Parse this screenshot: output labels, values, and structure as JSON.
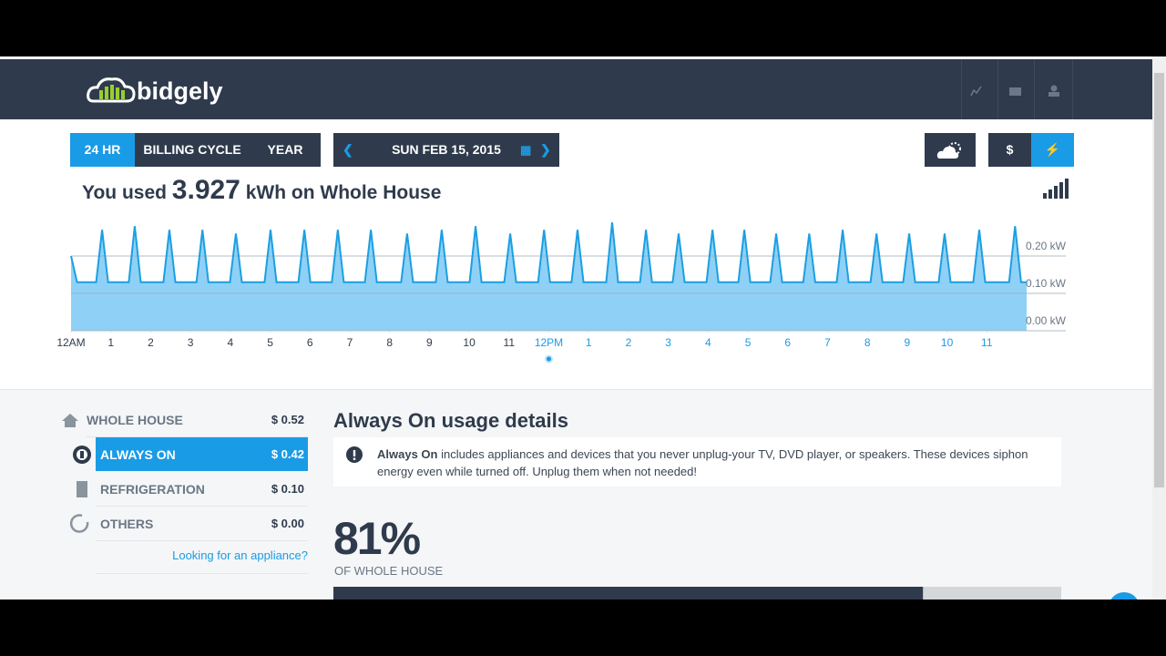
{
  "header": {
    "logo": "bidgely"
  },
  "controls": {
    "tabs": [
      "24 HR",
      "BILLING CYCLE",
      "YEAR"
    ],
    "date": "SUN FEB 15, 2015",
    "currency_button": "$"
  },
  "summary": {
    "prefix": "You used",
    "amount": "3.927",
    "suffix": "kWh on Whole House"
  },
  "chart_data": {
    "type": "area",
    "color": "#1b9fe2",
    "fill": "#8fd1f6",
    "x": [
      0,
      0.15,
      0.63,
      0.78,
      0.93,
      1.45,
      1.6,
      1.75,
      2.32,
      2.47,
      2.62,
      3.15,
      3.3,
      3.45,
      3.99,
      4.14,
      4.29,
      4.86,
      5.01,
      5.16,
      5.71,
      5.86,
      6.01,
      6.55,
      6.7,
      6.85,
      7.38,
      7.53,
      7.68,
      8.29,
      8.44,
      8.59,
      9.16,
      9.31,
      9.46,
      10.01,
      10.16,
      10.31,
      10.88,
      11.03,
      11.18,
      11.73,
      11.88,
      12.03,
      12.57,
      12.72,
      12.87,
      13.44,
      13.59,
      13.74,
      14.29,
      14.44,
      14.59,
      15.11,
      15.26,
      15.41,
      15.96,
      16.11,
      16.26,
      16.76,
      16.91,
      17.06,
      17.56,
      17.71,
      17.86,
      18.39,
      18.54,
      18.69,
      19.23,
      19.38,
      19.53,
      20.08,
      20.23,
      20.38,
      20.9,
      21.05,
      21.2,
      21.79,
      21.94,
      22.09,
      22.66,
      22.81,
      22.96,
      23.56,
      23.71,
      23.86,
      24
    ],
    "values": [
      0.2,
      0.13,
      0.13,
      0.27,
      0.13,
      0.13,
      0.28,
      0.13,
      0.13,
      0.27,
      0.13,
      0.13,
      0.27,
      0.13,
      0.13,
      0.26,
      0.13,
      0.13,
      0.27,
      0.13,
      0.13,
      0.27,
      0.13,
      0.13,
      0.27,
      0.13,
      0.13,
      0.27,
      0.13,
      0.13,
      0.26,
      0.13,
      0.13,
      0.27,
      0.13,
      0.13,
      0.28,
      0.13,
      0.13,
      0.26,
      0.13,
      0.13,
      0.27,
      0.13,
      0.13,
      0.27,
      0.13,
      0.13,
      0.29,
      0.13,
      0.13,
      0.27,
      0.13,
      0.13,
      0.26,
      0.13,
      0.13,
      0.27,
      0.13,
      0.13,
      0.27,
      0.13,
      0.13,
      0.26,
      0.13,
      0.13,
      0.26,
      0.13,
      0.13,
      0.27,
      0.13,
      0.13,
      0.26,
      0.13,
      0.13,
      0.26,
      0.13,
      0.13,
      0.26,
      0.13,
      0.13,
      0.27,
      0.13,
      0.13,
      0.28,
      0.13,
      0.13
    ],
    "xlim": [
      0,
      24
    ],
    "xticks": [
      {
        "value": 0,
        "label": "12AM"
      },
      1,
      2,
      3,
      4,
      5,
      6,
      7,
      8,
      9,
      10,
      11,
      {
        "value": 12,
        "label": "12PM"
      },
      {
        "value": 13,
        "label": "1"
      },
      {
        "value": 14,
        "label": "2"
      },
      {
        "value": 15,
        "label": "3"
      },
      {
        "value": 16,
        "label": "4"
      },
      {
        "value": 17,
        "label": "5"
      },
      {
        "value": 18,
        "label": "6"
      },
      {
        "value": 19,
        "label": "7"
      },
      {
        "value": 20,
        "label": "8"
      },
      {
        "value": 21,
        "label": "9"
      },
      {
        "value": 22,
        "label": "10"
      },
      {
        "value": 23,
        "label": "11"
      }
    ],
    "ylim": [
      0,
      0.3
    ],
    "yticks": [
      {
        "value": 0.2,
        "label": "0.20 kW"
      },
      {
        "value": 0.1,
        "label": "0.10 kW"
      },
      {
        "value": 0,
        "label": "0.00 kW"
      }
    ],
    "grid": true
  },
  "sidebar": {
    "items": [
      {
        "name": "WHOLE HOUSE",
        "cost": "$ 0.52"
      },
      {
        "name": "ALWAYS ON",
        "cost": "$ 0.42"
      },
      {
        "name": "REFRIGERATION",
        "cost": "$ 0.10"
      },
      {
        "name": "OTHERS",
        "cost": "$ 0.00"
      }
    ],
    "link": "Looking for an appliance?"
  },
  "details": {
    "title": "Always On usage details",
    "info_bold": "Always On",
    "info_text": "includes appliances and devices that you never unplug-your TV, DVD player, or speakers. These devices siphon energy even while turned off. Unplug them when not needed!",
    "share": {
      "value": 81,
      "label": "81%"
    },
    "share_caption": "OF WHOLE HOUSE"
  }
}
